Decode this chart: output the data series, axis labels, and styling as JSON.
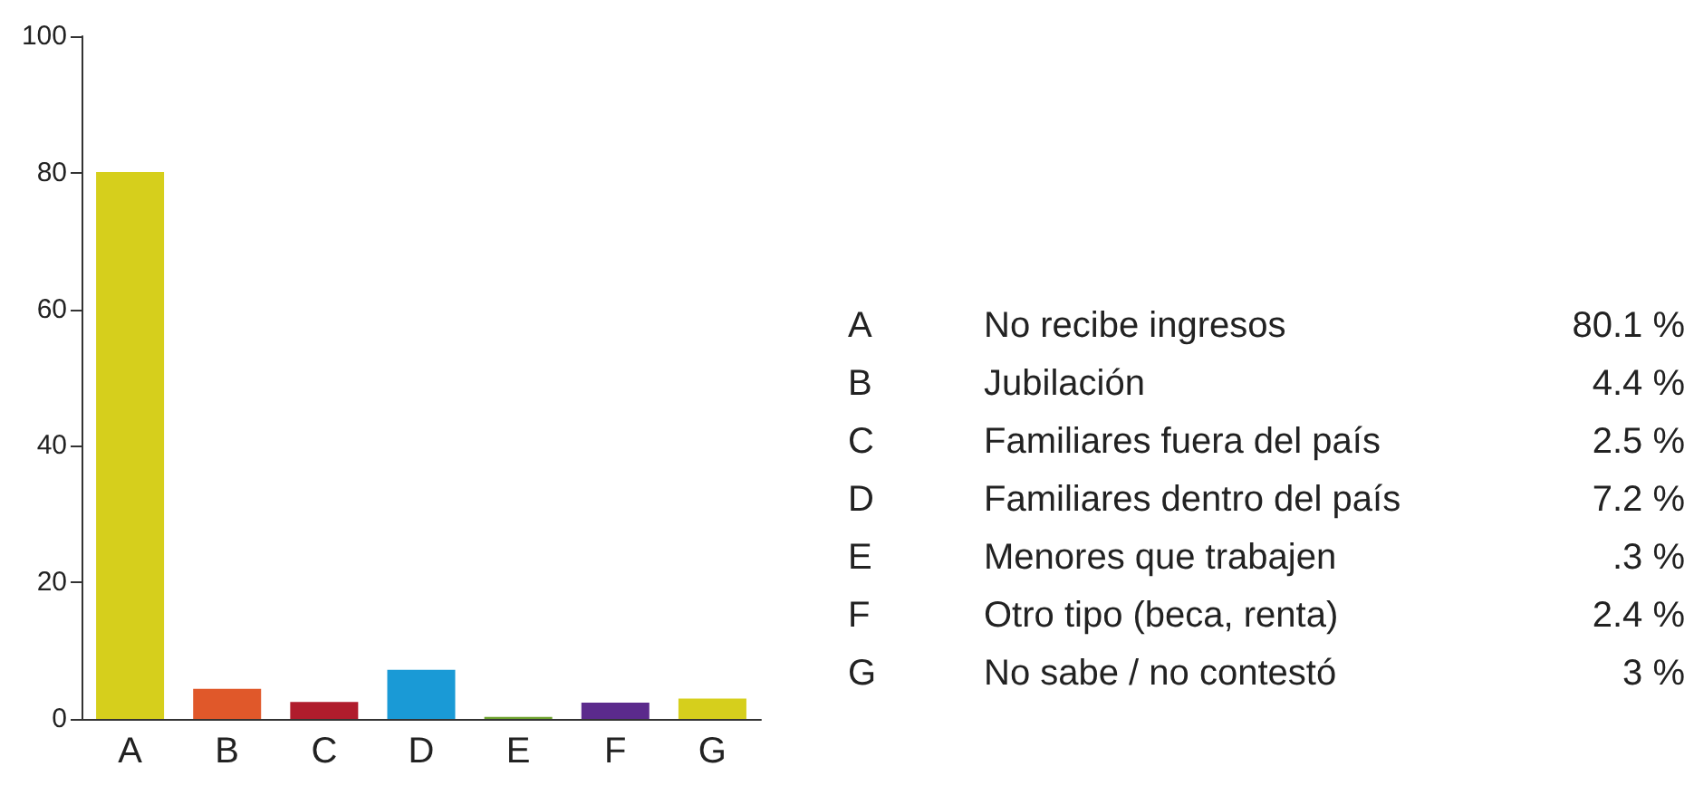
{
  "chart_data": {
    "type": "bar",
    "categories": [
      "A",
      "B",
      "C",
      "D",
      "E",
      "F",
      "G"
    ],
    "values": [
      80.1,
      4.4,
      2.5,
      7.2,
      0.3,
      2.4,
      3
    ],
    "colors": [
      "#d6cf1c",
      "#e0582a",
      "#b01c2c",
      "#1a9ad6",
      "#6ea22e",
      "#5b2a8c",
      "#d6cf1c"
    ],
    "annotations": [
      "No recibe ingresos",
      "80.1 %",
      "Jubilación",
      "4.4 %",
      "Familiares fuera del país",
      "2.5 %",
      "Familiares dentro del país",
      "7.2 %",
      "Menores que trabajen",
      ".3 %",
      "Otro tipo (beca, renta)",
      "2.4 %",
      "No sabe / no contestó",
      "3 %"
    ],
    "ylim": [
      0,
      100
    ],
    "yticks": [
      0,
      20,
      40,
      60,
      80,
      100
    ],
    "grid": false
  }
}
